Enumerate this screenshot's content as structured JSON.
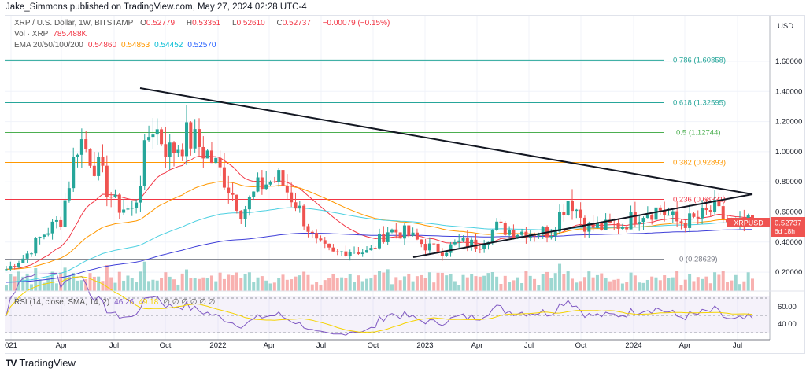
{
  "publisher": "Jake_Simmons published on TradingView.com, May 27, 2024 02:28 UTC-4",
  "legend": {
    "symbol": "XRP / U.S. Dollar, 1W, BITSTAMP",
    "o_label": "O",
    "o": "0.52779",
    "h_label": "H",
    "h": "0.53351",
    "l_label": "L",
    "l": "0.52610",
    "c_label": "C",
    "c": "0.52737",
    "change": "−0.00079 (−0.15%)",
    "vol_label": "Vol · XRP",
    "vol": "785.488K",
    "ema_label": "EMA 20/50/100/200",
    "ema20": "0.54860",
    "ema50": "0.54853",
    "ema100": "0.54452",
    "ema200": "0.52570"
  },
  "rsi_legend": {
    "label": "RSI (14, close, SMA, 14, 2)",
    "rsi": "46.26",
    "sma": "49.18",
    "empties": "∅ ∅ ∅ ∅ ∅ ∅"
  },
  "currency": "USD",
  "price_badge": {
    "symbol": "XRPUSD",
    "price": "0.52737",
    "countdown": "6d 18h"
  },
  "colors": {
    "up": "#26a69a",
    "down": "#ef5350",
    "ema20": "#f23645",
    "ema50": "#ff9800",
    "ema100": "#4dd0e1",
    "ema200": "#3f3fd8",
    "rsi": "#7e57c2",
    "rsi_sma": "#f5d300",
    "fib": "#26a69a"
  },
  "chart_data": {
    "type": "candlestick",
    "price_axis": [
      "1.60000",
      "1.40000",
      "1.20000",
      "1.00000",
      "0.80000",
      "0.60000",
      "0.40000",
      "0.20000"
    ],
    "price_axis_values": [
      1.6,
      1.4,
      1.2,
      1.0,
      0.8,
      0.6,
      0.4,
      0.2
    ],
    "rsi_axis": [
      "60.00",
      "40.00"
    ],
    "time_axis": [
      "021",
      "Apr",
      "Jul",
      "Oct",
      "2022",
      "Apr",
      "Jul",
      "Oct",
      "2023",
      "Apr",
      "Jul",
      "Oct",
      "2024",
      "Apr",
      "Jul"
    ],
    "fib_levels": [
      {
        "label": "0.786 (1.60858)",
        "value": 1.60858,
        "color": "#26a69a"
      },
      {
        "label": "0.618 (1.32595)",
        "value": 1.32595,
        "color": "#26a69a"
      },
      {
        "label": "0.5 (1.12744)",
        "value": 1.12744,
        "color": "#4caf50"
      },
      {
        "label": "0.382 (0.92893)",
        "value": 0.92893,
        "color": "#ff9800"
      },
      {
        "label": "0.236 (0.68331)",
        "value": 0.68331,
        "color": "#f23645"
      },
      {
        "label": "0 (0.28629)",
        "value": 0.28629,
        "color": "#787b86"
      }
    ],
    "monthly_closes_approx": [
      0.22,
      0.3,
      0.45,
      0.55,
      1.1,
      0.9,
      0.65,
      0.6,
      1.2,
      1.0,
      1.1,
      1.0,
      0.83,
      0.6,
      0.78,
      0.82,
      0.65,
      0.4,
      0.32,
      0.35,
      0.33,
      0.48,
      0.46,
      0.38,
      0.34,
      0.4,
      0.38,
      0.5,
      0.47,
      0.47,
      0.47,
      0.7,
      0.5,
      0.5,
      0.52,
      0.6,
      0.62,
      0.53,
      0.55,
      0.62,
      0.5,
      0.527
    ]
  }
}
